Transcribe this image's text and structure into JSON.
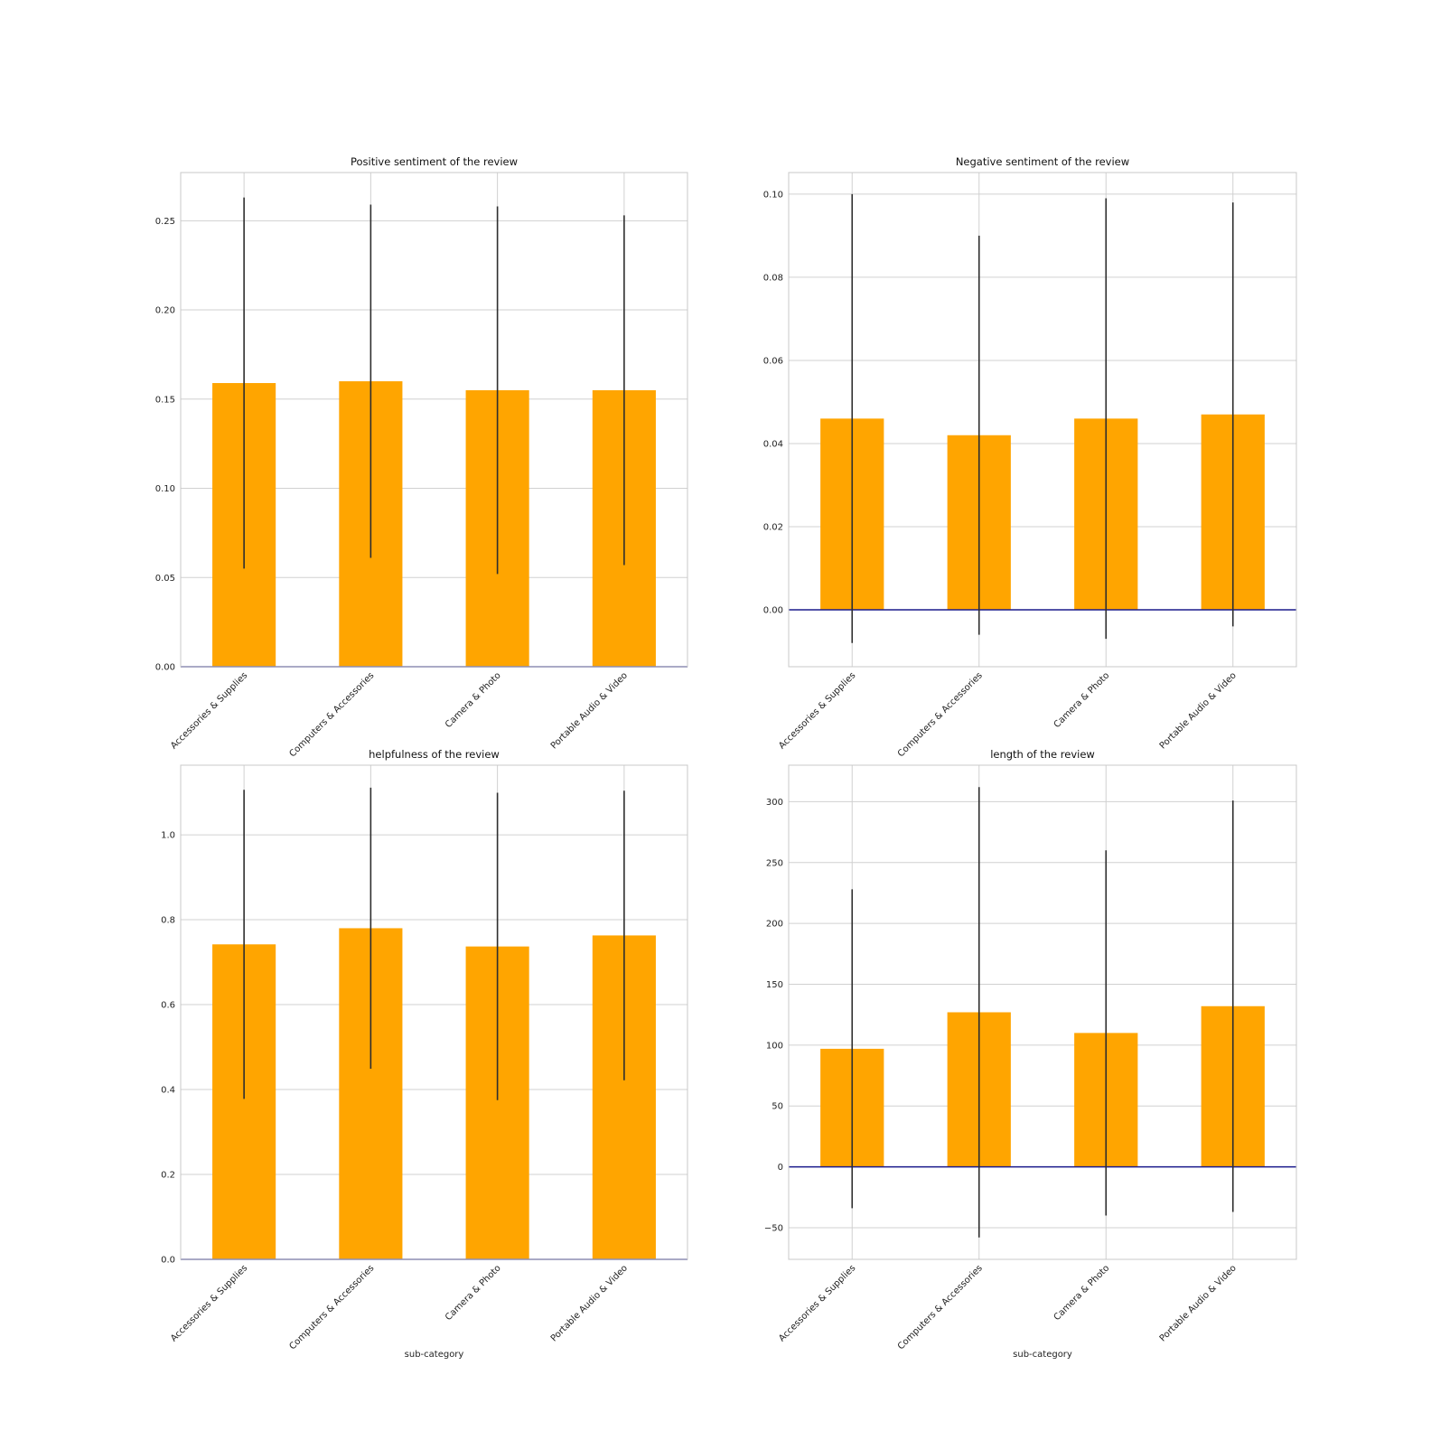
{
  "colors": {
    "bar": "#ffa500",
    "errorbar": "#2e2e2e",
    "zeroline": "#1a1a8c",
    "grid": "#d0d0d0",
    "frame": "#c8c8c8"
  },
  "chart_data": [
    {
      "type": "bar",
      "title": "Positive sentiment of the review",
      "xlabel": "",
      "ylabel": "",
      "categories": [
        "Accessories & Supplies",
        "Computers & Accessories",
        "Camera & Photo",
        "Portable Audio & Video"
      ],
      "values": [
        0.159,
        0.16,
        0.155,
        0.155
      ],
      "error": [
        0.104,
        0.099,
        0.103,
        0.098
      ],
      "ylim": [
        0,
        0.277
      ],
      "yticks": [
        0.0,
        0.05,
        0.1,
        0.15,
        0.2,
        0.25
      ],
      "ytick_labels": [
        "0.00",
        "0.05",
        "0.10",
        "0.15",
        "0.20",
        "0.25"
      ],
      "grid": true
    },
    {
      "type": "bar",
      "title": "Negative sentiment of the review",
      "xlabel": "",
      "ylabel": "",
      "categories": [
        "Accessories & Supplies",
        "Computers & Accessories",
        "Camera & Photo",
        "Portable Audio & Video"
      ],
      "values": [
        0.046,
        0.042,
        0.046,
        0.047
      ],
      "error": [
        0.054,
        0.048,
        0.053,
        0.051
      ],
      "ylim": [
        -0.0137,
        0.1052
      ],
      "yticks": [
        0.0,
        0.02,
        0.04,
        0.06,
        0.08,
        0.1
      ],
      "ytick_labels": [
        "0.00",
        "0.02",
        "0.04",
        "0.06",
        "0.08",
        "0.10"
      ],
      "grid": true
    },
    {
      "type": "bar",
      "title": "helpfulness of the review",
      "xlabel": "sub-category",
      "ylabel": "",
      "categories": [
        "Accessories & Supplies",
        "Computers & Accessories",
        "Camera & Photo",
        "Portable Audio & Video"
      ],
      "values": [
        0.742,
        0.78,
        0.737,
        0.763
      ],
      "error": [
        0.364,
        0.331,
        0.362,
        0.341
      ],
      "ylim": [
        0,
        1.164
      ],
      "yticks": [
        0.0,
        0.2,
        0.4,
        0.6,
        0.8,
        1.0
      ],
      "ytick_labels": [
        "0.0",
        "0.2",
        "0.4",
        "0.6",
        "0.8",
        "1.0"
      ],
      "grid": true
    },
    {
      "type": "bar",
      "title": "length of the review",
      "xlabel": "sub-category",
      "ylabel": "",
      "categories": [
        "Accessories & Supplies",
        "Computers & Accessories",
        "Camera & Photo",
        "Portable Audio & Video"
      ],
      "values": [
        97,
        127,
        110,
        132
      ],
      "error": [
        131,
        185,
        150,
        169
      ],
      "ylim": [
        -76,
        330
      ],
      "yticks": [
        -50,
        0,
        50,
        100,
        150,
        200,
        250,
        300
      ],
      "ytick_labels": [
        "−50",
        "0",
        "50",
        "100",
        "150",
        "200",
        "250",
        "300"
      ],
      "grid": true
    }
  ]
}
